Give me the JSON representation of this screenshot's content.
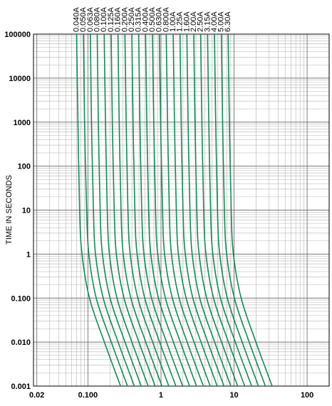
{
  "chart_data": {
    "type": "line",
    "ylabel": "TIME IN SECONDS",
    "log_x": true,
    "log_y": true,
    "grid": true,
    "color": "#17875a",
    "xlim": [
      0.018,
      200
    ],
    "ylim": [
      0.001,
      100000
    ],
    "xticks": [
      0.02,
      {
        "value": 0.1,
        "label": "0.100"
      },
      1,
      10,
      100
    ],
    "yticks": [
      {
        "value": 0.001,
        "label": "0.001"
      },
      {
        "value": 0.01,
        "label": "0.010"
      },
      {
        "value": 0.1,
        "label": "0.100"
      },
      1,
      10,
      100,
      1000,
      10000,
      100000
    ],
    "series": [
      {
        "name": "0.040A",
        "x": [
          0.07,
          0.073,
          0.077,
          0.083,
          0.105,
          0.168,
          0.28
        ],
        "values": [
          100000,
          1000,
          10,
          1,
          0.1,
          0.01,
          0.001
        ]
      },
      {
        "name": "0.050A",
        "x": [
          0.087,
          0.09,
          0.096,
          0.103,
          0.13,
          0.209,
          0.348
        ],
        "values": [
          100000,
          1000,
          10,
          1,
          0.1,
          0.01,
          0.001
        ]
      },
      {
        "name": "0.063A",
        "x": [
          0.108,
          0.112,
          0.119,
          0.127,
          0.162,
          0.259,
          0.432
        ],
        "values": [
          100000,
          1000,
          10,
          1,
          0.1,
          0.01,
          0.001
        ]
      },
      {
        "name": "0.080A",
        "x": [
          0.134,
          0.139,
          0.147,
          0.158,
          0.201,
          0.322,
          0.536
        ],
        "values": [
          100000,
          1000,
          10,
          1,
          0.1,
          0.01,
          0.001
        ]
      },
      {
        "name": "0.100A",
        "x": [
          0.167,
          0.174,
          0.184,
          0.197,
          0.25,
          0.4,
          0.668
        ],
        "values": [
          100000,
          1000,
          10,
          1,
          0.1,
          0.01,
          0.001
        ]
      },
      {
        "name": "0.125A",
        "x": [
          0.208,
          0.216,
          0.229,
          0.245,
          0.312,
          0.499,
          0.832
        ],
        "values": [
          100000,
          1000,
          10,
          1,
          0.1,
          0.01,
          0.001
        ]
      },
      {
        "name": "0.160A",
        "x": [
          0.258,
          0.268,
          0.284,
          0.304,
          0.387,
          0.619,
          1.03
        ],
        "values": [
          100000,
          1000,
          10,
          1,
          0.1,
          0.01,
          0.001
        ]
      },
      {
        "name": "0.200A",
        "x": [
          0.321,
          0.334,
          0.353,
          0.379,
          0.482,
          0.77,
          1.28
        ],
        "values": [
          100000,
          1000,
          10,
          1,
          0.1,
          0.01,
          0.001
        ]
      },
      {
        "name": "0.250A",
        "x": [
          0.399,
          0.415,
          0.439,
          0.471,
          0.599,
          0.958,
          1.6
        ],
        "values": [
          100000,
          1000,
          10,
          1,
          0.1,
          0.01,
          0.001
        ]
      },
      {
        "name": "0.315A",
        "x": [
          0.495,
          0.515,
          0.545,
          0.584,
          0.743,
          1.19,
          1.98
        ],
        "values": [
          100000,
          1000,
          10,
          1,
          0.1,
          0.01,
          0.001
        ]
      },
      {
        "name": "0.400A",
        "x": [
          0.615,
          0.64,
          0.677,
          0.726,
          0.923,
          1.48,
          2.46
        ],
        "values": [
          100000,
          1000,
          10,
          1,
          0.1,
          0.01,
          0.001
        ]
      },
      {
        "name": "0.500A",
        "x": [
          0.765,
          0.796,
          0.842,
          0.903,
          1.15,
          1.84,
          3.06
        ],
        "values": [
          100000,
          1000,
          10,
          1,
          0.1,
          0.01,
          0.001
        ]
      },
      {
        "name": "0.630A",
        "x": [
          0.95,
          0.988,
          1.05,
          1.12,
          1.43,
          2.28,
          3.8
        ],
        "values": [
          100000,
          1000,
          10,
          1,
          0.1,
          0.01,
          0.001
        ]
      },
      {
        "name": "0.800A",
        "x": [
          1.18,
          1.23,
          1.3,
          1.39,
          1.77,
          2.83,
          4.72
        ],
        "values": [
          100000,
          1000,
          10,
          1,
          0.1,
          0.01,
          0.001
        ]
      },
      {
        "name": "1.00A",
        "x": [
          1.47,
          1.53,
          1.62,
          1.73,
          2.21,
          3.53,
          5.88
        ],
        "values": [
          100000,
          1000,
          10,
          1,
          0.1,
          0.01,
          0.001
        ]
      },
      {
        "name": "1.25A",
        "x": [
          1.82,
          1.89,
          2.0,
          2.15,
          2.73,
          4.37,
          7.28
        ],
        "values": [
          100000,
          1000,
          10,
          1,
          0.1,
          0.01,
          0.001
        ]
      },
      {
        "name": "1.60A",
        "x": [
          2.26,
          2.35,
          2.49,
          2.67,
          3.39,
          5.42,
          9.04
        ],
        "values": [
          100000,
          1000,
          10,
          1,
          0.1,
          0.01,
          0.001
        ]
      },
      {
        "name": "2.00A",
        "x": [
          2.81,
          2.92,
          3.09,
          3.32,
          4.22,
          6.74,
          11.2
        ],
        "values": [
          100000,
          1000,
          10,
          1,
          0.1,
          0.01,
          0.001
        ]
      },
      {
        "name": "2.50A",
        "x": [
          3.49,
          3.63,
          3.84,
          4.12,
          5.24,
          8.38,
          14
        ],
        "values": [
          100000,
          1000,
          10,
          1,
          0.1,
          0.01,
          0.001
        ]
      },
      {
        "name": "3.15A",
        "x": [
          4.34,
          4.51,
          4.77,
          5.12,
          6.51,
          10.4,
          17.4
        ],
        "values": [
          100000,
          1000,
          10,
          1,
          0.1,
          0.01,
          0.001
        ]
      },
      {
        "name": "4.00A",
        "x": [
          5.39,
          5.61,
          5.93,
          6.36,
          8.09,
          12.9,
          21.6
        ],
        "values": [
          100000,
          1000,
          10,
          1,
          0.1,
          0.01,
          0.001
        ]
      },
      {
        "name": "5.00A",
        "x": [
          6.7,
          6.97,
          7.37,
          7.91,
          10.1,
          16.1,
          26.8
        ],
        "values": [
          100000,
          1000,
          10,
          1,
          0.1,
          0.01,
          0.001
        ]
      },
      {
        "name": "6.30A",
        "x": [
          8.3,
          8.63,
          9.13,
          9.79,
          12.5,
          19.9,
          33.2
        ],
        "values": [
          100000,
          1000,
          10,
          1,
          0.1,
          0.01,
          0.001
        ]
      }
    ]
  }
}
